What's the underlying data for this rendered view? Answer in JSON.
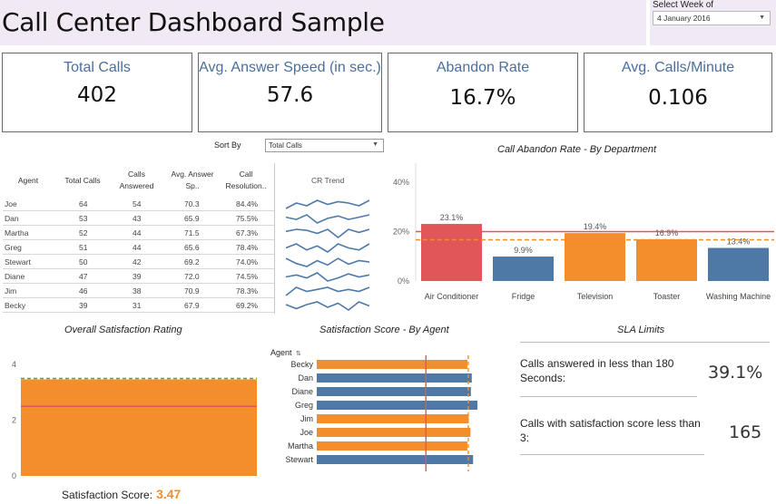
{
  "header": {
    "title": "Call Center Dashboard Sample",
    "week_label": "Select Week of",
    "week_value": "4 January 2016"
  },
  "kpis": [
    {
      "label": "Total Calls",
      "value": "402"
    },
    {
      "label": "Avg. Answer Speed (in sec.)",
      "value": "57.6"
    },
    {
      "label": "Abandon Rate",
      "value": "16.7%"
    },
    {
      "label": "Avg. Calls/Minute",
      "value": "0.106"
    }
  ],
  "sort": {
    "label": "Sort By",
    "value": "Total Calls"
  },
  "table": {
    "headers": [
      "Agent",
      "Total Calls",
      "Calls Answered",
      "Avg. Answer Sp..",
      "Call Resolution..",
      "CR Trend"
    ],
    "rows": [
      [
        "Joe",
        "64",
        "54",
        "70.3",
        "84.4%"
      ],
      [
        "Dan",
        "53",
        "43",
        "65.9",
        "75.5%"
      ],
      [
        "Martha",
        "52",
        "44",
        "71.5",
        "67.3%"
      ],
      [
        "Greg",
        "51",
        "44",
        "65.6",
        "78.4%"
      ],
      [
        "Stewart",
        "50",
        "42",
        "69.2",
        "74.0%"
      ],
      [
        "Diane",
        "47",
        "39",
        "72.0",
        "74.5%"
      ],
      [
        "Jim",
        "46",
        "38",
        "70.9",
        "78.3%"
      ],
      [
        "Becky",
        "39",
        "31",
        "67.9",
        "69.2%"
      ]
    ]
  },
  "colors": {
    "orange": "#f28e2b",
    "blue": "#4e79a7",
    "red": "#e15759",
    "kpi_label": "#4a6f9c"
  },
  "chart_data": [
    {
      "type": "bar",
      "title": "Call Abandon Rate - By Department",
      "categories": [
        "Air Conditioner",
        "Fridge",
        "Television",
        "Toaster",
        "Washing Machine"
      ],
      "values": [
        23.1,
        9.9,
        19.4,
        16.9,
        13.4
      ],
      "labels": [
        "23.1%",
        "9.9%",
        "19.4%",
        "16.9%",
        "13.4%"
      ],
      "colors": [
        "#e15759",
        "#4e79a7",
        "#f28e2b",
        "#f28e2b",
        "#4e79a7"
      ],
      "yticks": [
        "0%",
        "20%",
        "40%"
      ],
      "ylim": [
        0,
        40
      ],
      "reference_lines": [
        {
          "value": 20,
          "color": "#e15759",
          "style": "solid"
        },
        {
          "value": 16.7,
          "color": "#f28e2b",
          "style": "dashed"
        }
      ]
    },
    {
      "type": "area",
      "title": "Overall Satisfaction Rating",
      "value": 3.47,
      "yticks": [
        "0",
        "2",
        "4"
      ],
      "ylim": [
        0,
        4.3
      ],
      "reference_lines": [
        {
          "value": 3.5,
          "color": "#59a14f",
          "style": "dashed"
        },
        {
          "value": 2.5,
          "color": "#e15759",
          "style": "solid"
        }
      ],
      "score_label": "Satisfaction Score:",
      "score_value": "3.47"
    },
    {
      "type": "bar",
      "orientation": "horizontal",
      "title": "Satisfaction Score - By Agent",
      "axis_label": "Agent",
      "categories": [
        "Becky",
        "Dan",
        "Diane",
        "Greg",
        "Jim",
        "Joe",
        "Martha",
        "Stewart"
      ],
      "values": [
        3.45,
        3.55,
        3.53,
        3.68,
        3.48,
        3.52,
        3.45,
        3.58
      ],
      "colors": [
        "#f28e2b",
        "#4e79a7",
        "#4e79a7",
        "#4e79a7",
        "#f28e2b",
        "#f28e2b",
        "#f28e2b",
        "#4e79a7"
      ],
      "xlim": [
        0,
        3.7
      ],
      "reference_lines": [
        {
          "value": 2.5,
          "color": "#e15759",
          "style": "solid"
        },
        {
          "value": 3.47,
          "color": "#f28e2b",
          "style": "dashed"
        }
      ]
    },
    {
      "type": "line",
      "title": "CR Trend",
      "series": [
        {
          "name": "Joe",
          "values": [
            80,
            84,
            82,
            86,
            83,
            85,
            84,
            82,
            86
          ]
        },
        {
          "name": "Dan",
          "values": [
            76,
            74,
            78,
            71,
            75,
            77,
            74,
            76,
            78
          ]
        },
        {
          "name": "Martha",
          "values": [
            68,
            70,
            69,
            66,
            70,
            62,
            70,
            67,
            70
          ]
        },
        {
          "name": "Greg",
          "values": [
            78,
            80,
            77,
            79,
            76,
            80,
            78,
            77,
            80
          ]
        },
        {
          "name": "Stewart",
          "values": [
            79,
            72,
            68,
            76,
            70,
            79,
            71,
            76,
            74
          ]
        },
        {
          "name": "Diane",
          "values": [
            74,
            76,
            73,
            78,
            70,
            73,
            77,
            74,
            76
          ]
        },
        {
          "name": "Jim",
          "values": [
            76,
            80,
            78,
            79,
            80,
            78,
            79,
            78,
            80
          ]
        },
        {
          "name": "Becky",
          "values": [
            70,
            67,
            70,
            72,
            68,
            71,
            66,
            72,
            69
          ]
        }
      ]
    }
  ],
  "sla": {
    "title": "SLA Limits",
    "items": [
      {
        "text": "Calls answered in less than 180 Seconds:",
        "value": "39.1%"
      },
      {
        "text": "Calls with satisfaction score less than 3:",
        "value": "165"
      }
    ]
  }
}
